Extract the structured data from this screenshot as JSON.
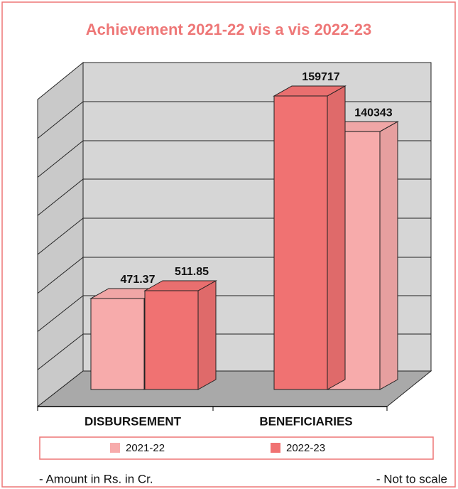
{
  "chart_data": {
    "type": "bar3d",
    "title": "Achievement 2021-22 vis a vis 2022-23",
    "categories": [
      "DISBURSEMENT",
      "BENEFICIARIES"
    ],
    "series": [
      {
        "name": "2021-22",
        "color": "#f7abab",
        "values": [
          471.37,
          140343
        ]
      },
      {
        "name": "2022-23",
        "color": "#f07272",
        "values": [
          511.85,
          159717
        ]
      }
    ],
    "annotations": [
      "- Amount in Rs. in Cr.",
      "- Not to scale"
    ]
  }
}
